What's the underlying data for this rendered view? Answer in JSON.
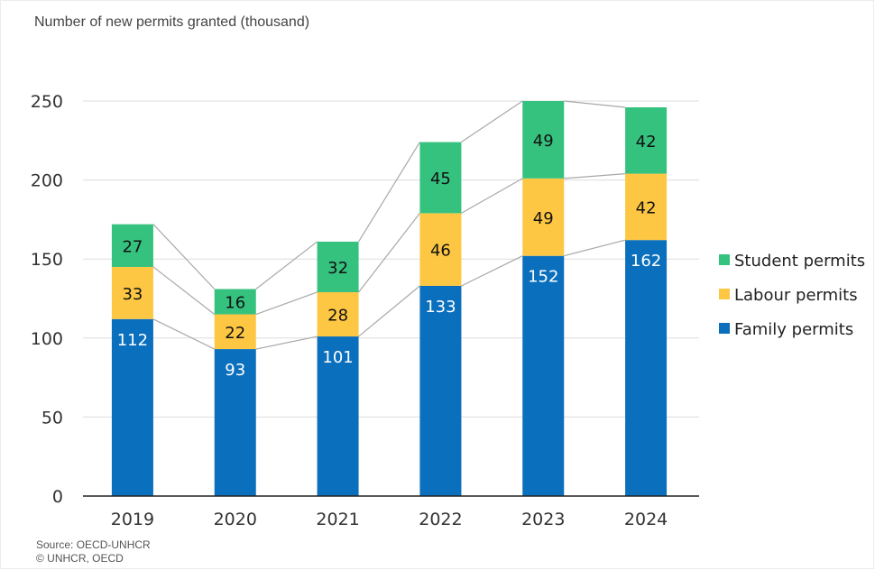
{
  "chart_data": {
    "type": "bar",
    "stacked": true,
    "ylabel": "Number of new permits granted (thousand)",
    "categories": [
      "2019",
      "2020",
      "2021",
      "2022",
      "2023",
      "2024"
    ],
    "ylim": [
      0,
      250
    ],
    "yticks": [
      0,
      50,
      100,
      150,
      200,
      250
    ],
    "grid": true,
    "legend_position": "right",
    "series": [
      {
        "name": "Family permits",
        "color": "#0a6fbd",
        "label_color": "#ffffff",
        "values": [
          112,
          93,
          101,
          133,
          152,
          162
        ]
      },
      {
        "name": "Labour permits",
        "color": "#fdc743",
        "label_color": "#111111",
        "values": [
          33,
          22,
          28,
          46,
          49,
          42
        ]
      },
      {
        "name": "Student permits",
        "color": "#35c27f",
        "label_color": "#111111",
        "values": [
          27,
          16,
          32,
          45,
          49,
          42
        ]
      }
    ],
    "legend_order": [
      "Student permits",
      "Labour permits",
      "Family permits"
    ]
  },
  "footer": {
    "source": "Source: OECD-UNHCR",
    "copyright": "© UNHCR, OECD"
  }
}
